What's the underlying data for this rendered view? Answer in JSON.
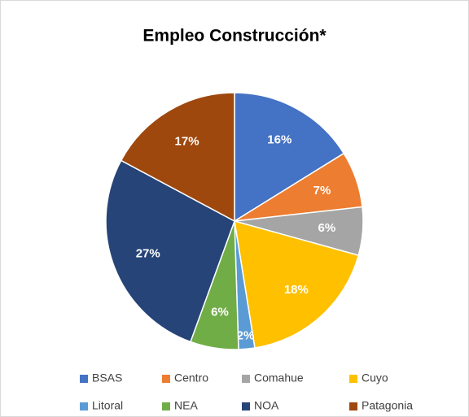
{
  "chart_data": {
    "type": "pie",
    "title": "Empleo Construcción*",
    "categories": [
      "BSAS",
      "Centro",
      "Comahue",
      "Cuyo",
      "Litoral",
      "NEA",
      "NOA",
      "Patagonia"
    ],
    "values": [
      16,
      7,
      6,
      18,
      2,
      6,
      27,
      17
    ],
    "value_labels": [
      "16%",
      "7%",
      "6%",
      "18%",
      "2%",
      "6%",
      "27%",
      "17%"
    ],
    "colors": [
      "#4472c4",
      "#ed7d31",
      "#a5a5a5",
      "#ffc000",
      "#5b9bd5",
      "#70ad47",
      "#264478",
      "#9e480e"
    ],
    "legend": "bottom"
  }
}
